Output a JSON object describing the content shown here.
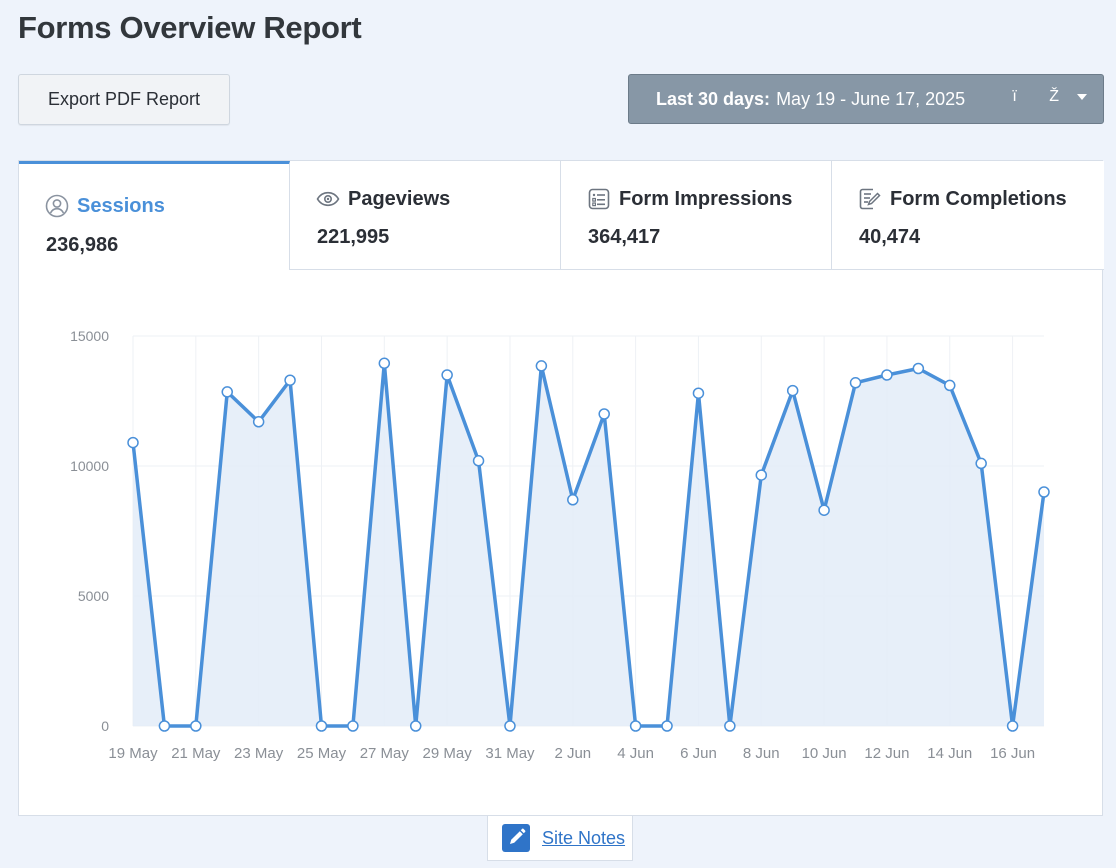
{
  "page": {
    "title": "Forms Overview Report"
  },
  "toolbar": {
    "export_label": "Export PDF Report"
  },
  "date_range": {
    "prefix": "Last 30 days:",
    "range": "May 19 - June 17, 2025",
    "extra_glyphs": "ï Ž"
  },
  "tabs": [
    {
      "label": "Sessions",
      "value": "236,986",
      "icon": "user-circle-icon",
      "active": true
    },
    {
      "label": "Pageviews",
      "value": "221,995",
      "icon": "eye-icon",
      "active": false
    },
    {
      "label": "Form Impressions",
      "value": "364,417",
      "icon": "form-list-icon",
      "active": false
    },
    {
      "label": "Form Completions",
      "value": "40,474",
      "icon": "form-edit-icon",
      "active": false
    }
  ],
  "site_notes": {
    "label": "Site Notes",
    "icon": "pencil-icon"
  },
  "colors": {
    "accent": "#4a90d9",
    "line": "#4a90d9",
    "area": "#e3ecf8",
    "date_button": "#8797a6"
  },
  "chart_data": {
    "type": "area",
    "series": [
      {
        "values": [
          10900,
          0,
          0,
          12850,
          11700,
          13300,
          0,
          0,
          13950,
          0,
          13500,
          10200,
          0,
          13850,
          8700,
          12000,
          0,
          0,
          12800,
          0,
          9650,
          12900,
          8300,
          13200,
          13500,
          13750,
          13100,
          10100,
          0,
          9000
        ]
      }
    ],
    "x": [
      "19 May",
      "20 May",
      "21 May",
      "22 May",
      "23 May",
      "24 May",
      "25 May",
      "26 May",
      "27 May",
      "28 May",
      "29 May",
      "30 May",
      "31 May",
      "1 Jun",
      "2 Jun",
      "3 Jun",
      "4 Jun",
      "5 Jun",
      "6 Jun",
      "7 Jun",
      "8 Jun",
      "9 Jun",
      "10 Jun",
      "11 Jun",
      "12 Jun",
      "13 Jun",
      "14 Jun",
      "15 Jun",
      "16 Jun",
      "17 Jun"
    ],
    "x_tick_labels": [
      "19 May",
      "21 May",
      "23 May",
      "25 May",
      "27 May",
      "29 May",
      "31 May",
      "2 Jun",
      "4 Jun",
      "6 Jun",
      "8 Jun",
      "10 Jun",
      "12 Jun",
      "14 Jun",
      "16 Jun"
    ],
    "y_ticks": [
      0,
      5000,
      10000,
      15000
    ],
    "ylim": [
      0,
      15000
    ],
    "grid": true
  }
}
